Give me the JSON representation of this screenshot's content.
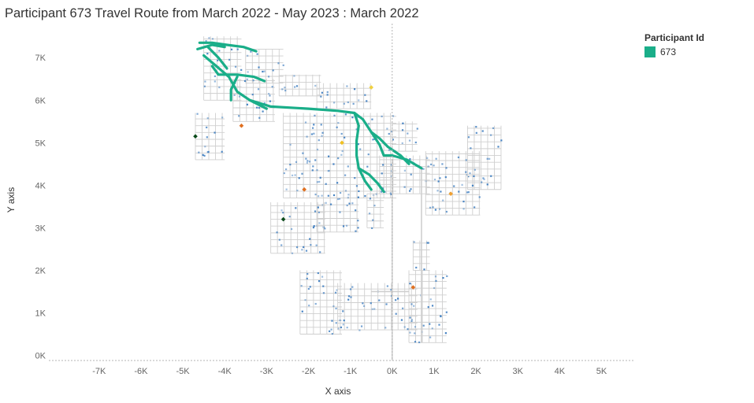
{
  "title": "Participant 673 Travel Route from March 2022 - May 2023 :  March 2022",
  "legend": {
    "title": "Participant Id",
    "items": [
      {
        "label": "673",
        "color": "#1aae89"
      }
    ]
  },
  "colors": {
    "route": "#1aae89",
    "map_grid": "#cfcfcf",
    "building": "#3a7bbf",
    "zero_line": "#b5b5b5"
  },
  "chart_data": {
    "type": "scatter",
    "title": "Participant 673 Travel Route from March 2022 - May 2023 :  March 2022",
    "xlabel": "X axis",
    "ylabel": "Y axis",
    "xlim": [
      -8200,
      5800
    ],
    "ylim": [
      -120,
      7800
    ],
    "x_ticks": [
      -7000,
      -6000,
      -5000,
      -4000,
      -3000,
      -2000,
      -1000,
      0,
      1000,
      2000,
      3000,
      4000,
      5000
    ],
    "x_tick_labels": [
      "-7K",
      "-6K",
      "-5K",
      "-4K",
      "-3K",
      "-2K",
      "-1K",
      "0K",
      "1K",
      "2K",
      "3K",
      "4K",
      "5K"
    ],
    "y_ticks": [
      0,
      1000,
      2000,
      3000,
      4000,
      5000,
      6000,
      7000
    ],
    "y_tick_labels": [
      "0K",
      "1K",
      "2K",
      "3K",
      "4K",
      "5K",
      "6K",
      "7K"
    ],
    "grid": false,
    "legend_position": "top-right",
    "series": [
      {
        "name": "673",
        "color": "#1aae89",
        "routes": [
          [
            [
              -4600,
              7350
            ],
            [
              -4300,
              7350
            ],
            [
              -3950,
              7300
            ],
            [
              -3550,
              7250
            ],
            [
              -3250,
              7150
            ]
          ],
          [
            [
              -4650,
              7200
            ],
            [
              -4300,
              7300
            ],
            [
              -4000,
              7250
            ]
          ],
          [
            [
              -4500,
              7050
            ],
            [
              -4200,
              6800
            ],
            [
              -3900,
              6550
            ],
            [
              -3700,
              6200
            ],
            [
              -3400,
              6000
            ],
            [
              -2900,
              5850
            ],
            [
              -2000,
              5800
            ],
            [
              -1300,
              5750
            ],
            [
              -900,
              5700
            ],
            [
              -700,
              5550
            ],
            [
              -500,
              5250
            ],
            [
              -300,
              4950
            ],
            [
              -200,
              4700
            ],
            [
              0,
              4700
            ],
            [
              350,
              4600
            ],
            [
              700,
              4400
            ]
          ],
          [
            [
              -4300,
              6800
            ],
            [
              -4150,
              6600
            ],
            [
              -3700,
              6600
            ],
            [
              -3300,
              6550
            ],
            [
              -3050,
              6450
            ]
          ],
          [
            [
              -3700,
              6550
            ],
            [
              -3850,
              6250
            ],
            [
              -3850,
              6000
            ]
          ],
          [
            [
              -3400,
              6000
            ],
            [
              -3200,
              5900
            ],
            [
              -3000,
              5800
            ]
          ],
          [
            [
              -900,
              5700
            ],
            [
              -800,
              5400
            ],
            [
              -850,
              5050
            ],
            [
              -850,
              4700
            ],
            [
              -800,
              4400
            ],
            [
              -550,
              4250
            ],
            [
              -350,
              4050
            ],
            [
              -200,
              3850
            ]
          ],
          [
            [
              -800,
              4400
            ],
            [
              -650,
              4100
            ],
            [
              -500,
              3900
            ]
          ],
          [
            [
              -500,
              5250
            ],
            [
              -300,
              5100
            ],
            [
              -100,
              4900
            ],
            [
              200,
              4700
            ],
            [
              400,
              4500
            ]
          ],
          [
            [
              -4400,
              7250
            ],
            [
              -4150,
              7000
            ],
            [
              -3950,
              6750
            ]
          ]
        ]
      }
    ]
  },
  "axis": {
    "x_title": "X axis",
    "y_title": "Y axis"
  }
}
